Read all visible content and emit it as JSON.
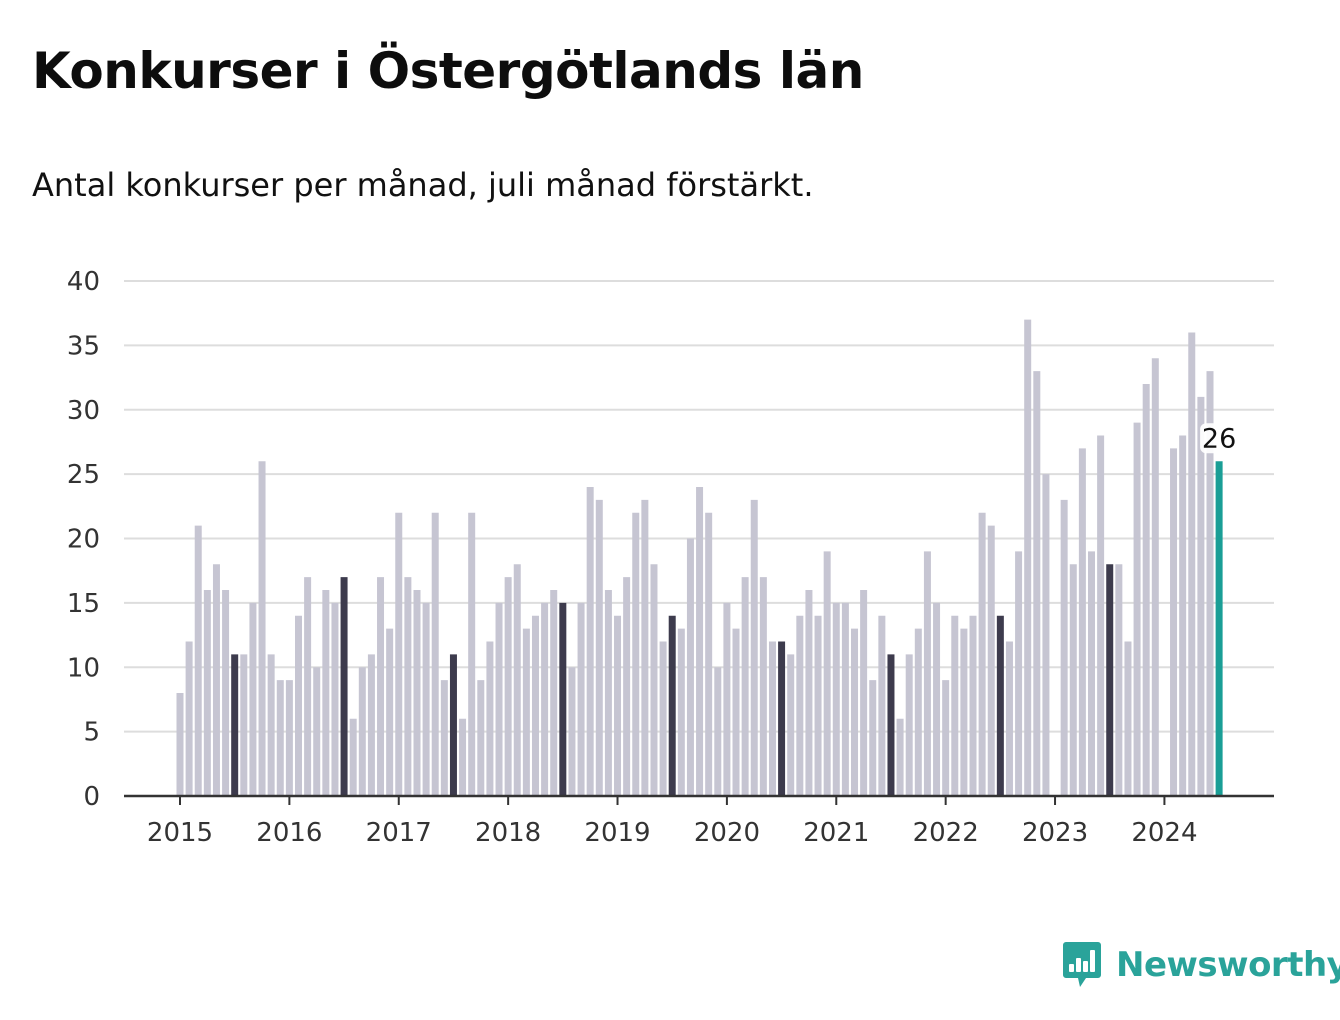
{
  "title": "Konkurser i Östergötlands län",
  "subtitle": "Antal konkurser per månad, juli månad förstärkt.",
  "brand": {
    "name": "Newsworthy"
  },
  "colors": {
    "regular": "#c6c5d2",
    "july": "#3d3b4d",
    "latest": "#1a9e96",
    "grid": "#dddddd",
    "axis": "#333333"
  },
  "chart_data": {
    "type": "bar",
    "title": "Konkurser i Östergötlands län",
    "subtitle": "Antal konkurser per månad, juli månad förstärkt.",
    "xlabel": "",
    "ylabel": "",
    "ylim": [
      0,
      40
    ],
    "yticks": [
      "0",
      "5",
      "10",
      "15",
      "20",
      "25",
      "30",
      "35",
      "40"
    ],
    "xticks": [
      "2015",
      "2016",
      "2017",
      "2018",
      "2019",
      "2020",
      "2021",
      "2022",
      "2023",
      "2024"
    ],
    "grid": true,
    "legend": "none",
    "highlight": "July of each year",
    "start": "2015-01",
    "values": [
      8,
      12,
      21,
      16,
      18,
      16,
      11,
      11,
      15,
      26,
      11,
      9,
      9,
      14,
      17,
      10,
      16,
      15,
      17,
      6,
      10,
      11,
      17,
      13,
      22,
      17,
      16,
      15,
      22,
      9,
      11,
      6,
      22,
      9,
      12,
      15,
      17,
      18,
      13,
      14,
      15,
      16,
      15,
      10,
      15,
      24,
      23,
      16,
      14,
      17,
      22,
      23,
      18,
      12,
      14,
      13,
      20,
      24,
      22,
      10,
      15,
      13,
      17,
      23,
      17,
      12,
      12,
      11,
      14,
      16,
      14,
      19,
      15,
      15,
      13,
      16,
      9,
      14,
      11,
      6,
      11,
      13,
      19,
      15,
      9,
      14,
      13,
      14,
      22,
      21,
      14,
      12,
      19,
      37,
      33,
      25,
      0,
      23,
      18,
      27,
      19,
      28,
      18,
      18,
      12,
      29,
      32,
      34,
      0,
      27,
      28,
      36,
      31,
      33,
      26
    ],
    "annotation": {
      "label": "26",
      "value": 26,
      "month": "2024-07"
    }
  }
}
